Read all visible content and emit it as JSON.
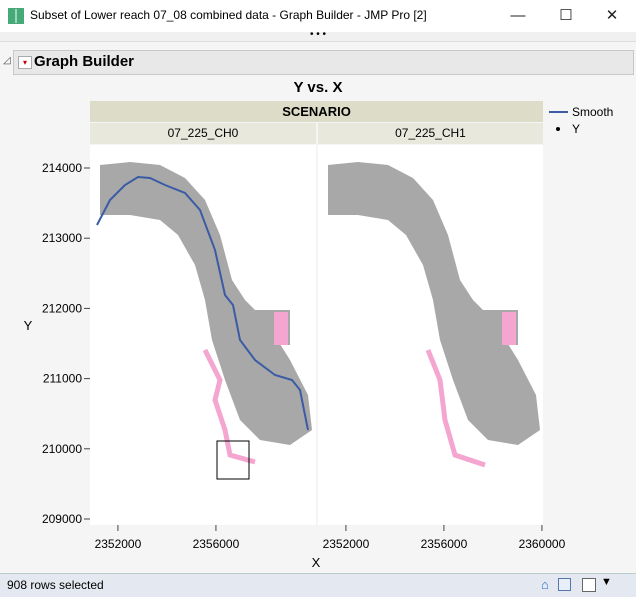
{
  "window": {
    "title": "Subset of Lower reach 07_08 combined data - Graph Builder - JMP Pro [2]",
    "minimize": "—",
    "maximize": "☐",
    "close": "✕"
  },
  "outline": {
    "title": "Graph Builder",
    "disclosure": "◿",
    "menu": "▾"
  },
  "status": {
    "text": "908 rows selected"
  },
  "chart_data": {
    "type": "scatter",
    "title": "Y vs. X",
    "xlabel": "X",
    "ylabel": "Y",
    "facet_title": "SCENARIO",
    "facets": [
      "07_225_CH0",
      "07_225_CH1"
    ],
    "xlim": [
      2350860,
      2360080
    ],
    "ylim": [
      208900,
      214330
    ],
    "x_ticks": [
      "2352000",
      "2356000",
      "2360000"
    ],
    "y_ticks": [
      "214000",
      "213000",
      "212000",
      "211000",
      "210000",
      "209000"
    ],
    "legend": {
      "position": "right",
      "entries": [
        "Smooth",
        "Y"
      ]
    },
    "colors": {
      "points": "#a8a8a8",
      "selected": "#f4a6d0",
      "smooth": "#3b5ba5"
    },
    "smooth_CH0": {
      "x": [
        2351146,
        2351676,
        2352288,
        2352820,
        2353309,
        2353921,
        2354738,
        2355350,
        2355962,
        2356370,
        2356697,
        2356982,
        2357595,
        2358411,
        2359105,
        2359432,
        2359758
      ],
      "y": [
        213188,
        213544,
        213758,
        213872,
        213858,
        213758,
        213644,
        213402,
        212832,
        212191,
        212048,
        211550,
        211265,
        211051,
        210980,
        210838,
        210268
      ]
    },
    "selected_rows": 908
  }
}
